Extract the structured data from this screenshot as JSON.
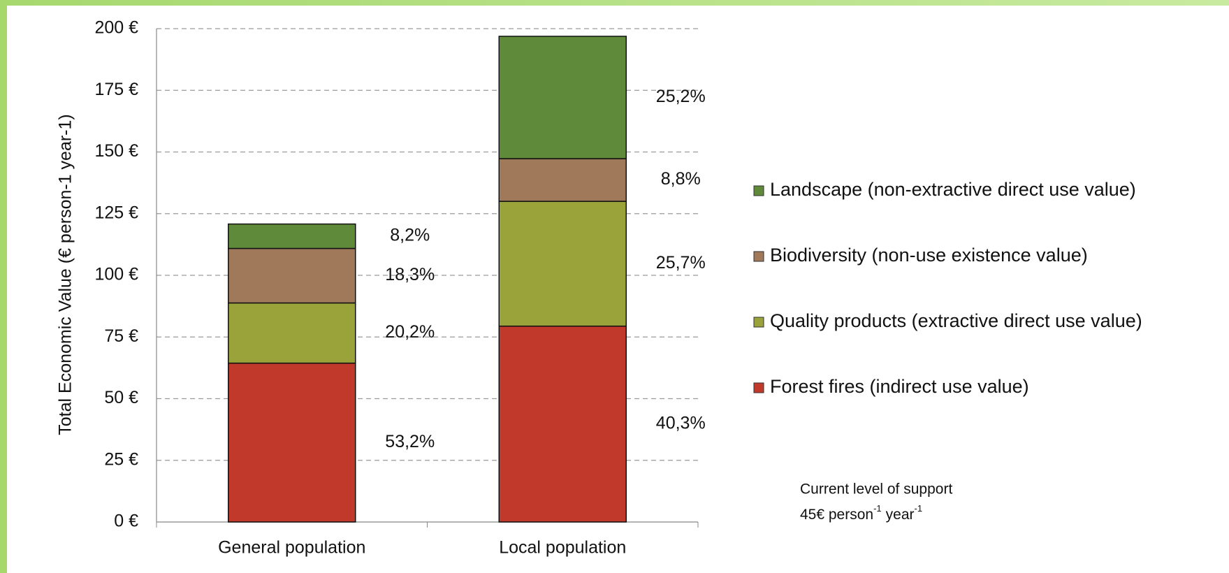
{
  "chart_data": {
    "type": "stacked_bar",
    "y_label": "Total Economic Value (€ person-1 year-1)",
    "categories": [
      "General population",
      "Local population"
    ],
    "series": [
      {
        "name": "Forest fires (indirect use value)",
        "color": "#c0392b",
        "values": [
          64.4,
          79.4
        ],
        "percent_values": [
          53.2,
          40.3
        ],
        "percent_labels": [
          "53,2%",
          "40,3%"
        ]
      },
      {
        "name": "Quality products (extractive direct use value)",
        "color": "#9aa23a",
        "values": [
          24.4,
          50.6
        ],
        "percent_values": [
          20.2,
          25.7
        ],
        "percent_labels": [
          "20,2%",
          "25,7%"
        ]
      },
      {
        "name": "Biodiversity (non-use existence value)",
        "color": "#a0785a",
        "values": [
          22.1,
          17.3
        ],
        "percent_values": [
          18.3,
          8.8
        ],
        "percent_labels": [
          "18,3%",
          "8,8%"
        ]
      },
      {
        "name": "Landscape (non-extractive direct use value)",
        "color": "#5e8a3a",
        "values": [
          9.9,
          49.6
        ],
        "percent_values": [
          8.2,
          25.2
        ],
        "percent_labels": [
          "8,2%",
          "25,2%"
        ]
      }
    ],
    "ylim": [
      0,
      200
    ],
    "yticks": [
      {
        "value": 0,
        "label": "0 €"
      },
      {
        "value": 25,
        "label": "25 €"
      },
      {
        "value": 50,
        "label": "50 €"
      },
      {
        "value": 75,
        "label": "75 €"
      },
      {
        "value": 100,
        "label": "100 €"
      },
      {
        "value": 125,
        "label": "125 €"
      },
      {
        "value": 150,
        "label": "150 €"
      },
      {
        "value": 175,
        "label": "175 €"
      },
      {
        "value": 200,
        "label": "200 €"
      }
    ],
    "grid": true,
    "annotation": {
      "line1": "Current level of support",
      "line2": [
        "45€ person",
        "-1",
        "year",
        "-1"
      ]
    }
  }
}
